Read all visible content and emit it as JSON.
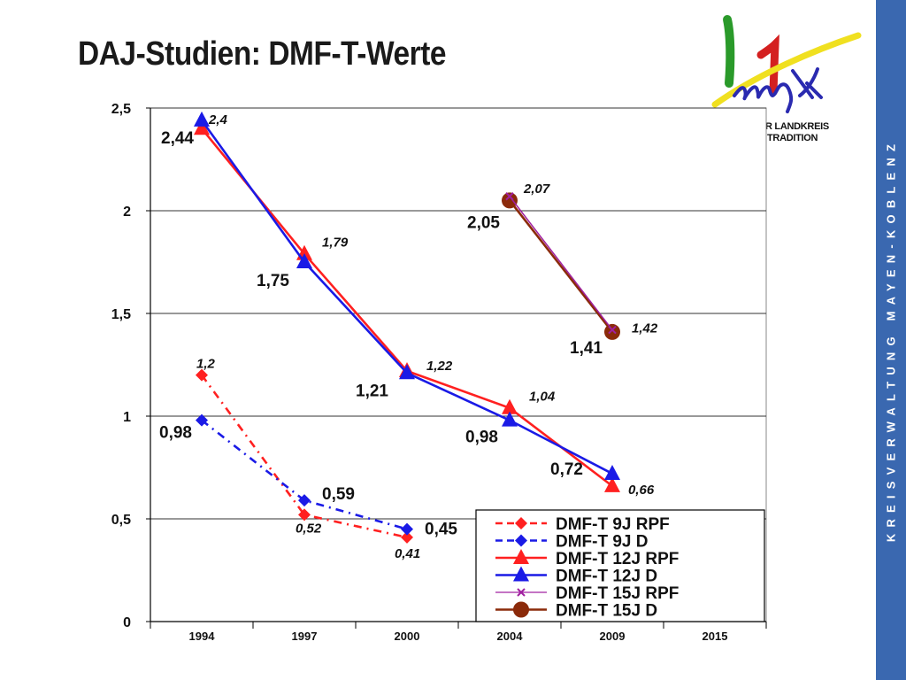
{
  "page": {
    "title": "DAJ-Studien: DMF-T-Werte",
    "sidebar_text": "KREISVERWALTUNG MAYEN-KOBLENZ"
  },
  "logo": {
    "line1": "ER LANDKREIS",
    "line2": "TRADITION"
  },
  "colors": {
    "red": "#ff2020",
    "blue": "#1a1ae6",
    "brown": "#8b2a0a",
    "purple": "#a020a0",
    "sidebar": "#3a68b0",
    "plot_bg": "#ffffff",
    "grid": "#000000"
  },
  "chart_data": {
    "type": "line",
    "categories": [
      "1994",
      "1997",
      "2000",
      "2004",
      "2009",
      "2015"
    ],
    "ylim": [
      0,
      2.5
    ],
    "yticks": [
      "0",
      "0,5",
      "1",
      "1,5",
      "2",
      "2,5"
    ],
    "ytick_values": [
      0,
      0.5,
      1,
      1.5,
      2,
      2.5
    ],
    "grid": true,
    "legend_position": "bottom-right",
    "series": [
      {
        "name": "DMF-T 9J RPF",
        "color": "#ff2020",
        "style": "dashed",
        "marker": "diamond",
        "values": [
          1.2,
          0.52,
          0.41,
          null,
          null,
          null
        ],
        "labels": [
          "1,2",
          "0,52",
          "0,41",
          null,
          null,
          null
        ],
        "label_style": "italic"
      },
      {
        "name": "DMF-T 9J D",
        "color": "#1a1ae6",
        "style": "dashed",
        "marker": "diamond",
        "values": [
          0.98,
          0.59,
          0.45,
          null,
          null,
          null
        ],
        "labels": [
          "0,98",
          "0,59",
          "0,45",
          null,
          null,
          null
        ],
        "label_style": "normal"
      },
      {
        "name": "DMF-T 12J RPF",
        "color": "#ff2020",
        "style": "solid",
        "marker": "triangle",
        "values": [
          2.4,
          1.79,
          1.22,
          1.04,
          0.66,
          null
        ],
        "labels": [
          "2,4",
          "1,79",
          "1,22",
          "1,04",
          "0,66",
          null
        ],
        "label_style": "italic"
      },
      {
        "name": "DMF-T 12J D",
        "color": "#1a1ae6",
        "style": "solid",
        "marker": "triangle",
        "values": [
          2.44,
          1.75,
          1.21,
          0.98,
          0.72,
          null
        ],
        "labels": [
          "2,44",
          "1,75",
          "1,21",
          "0,98",
          "0,72",
          null
        ],
        "label_style": "normal"
      },
      {
        "name": "DMF-T 15J RPF",
        "color": "#a020a0",
        "style": "solid",
        "marker": "x",
        "values": [
          null,
          null,
          null,
          2.07,
          1.42,
          null
        ],
        "labels": [
          null,
          null,
          null,
          "2,07",
          "1,42",
          null
        ],
        "label_style": "italic"
      },
      {
        "name": "DMF-T 15J D",
        "color": "#8b2a0a",
        "style": "solid",
        "marker": "circle",
        "values": [
          null,
          null,
          null,
          2.05,
          1.41,
          null
        ],
        "labels": [
          null,
          null,
          null,
          "2,05",
          "1,41",
          null
        ],
        "label_style": "normal"
      }
    ]
  }
}
